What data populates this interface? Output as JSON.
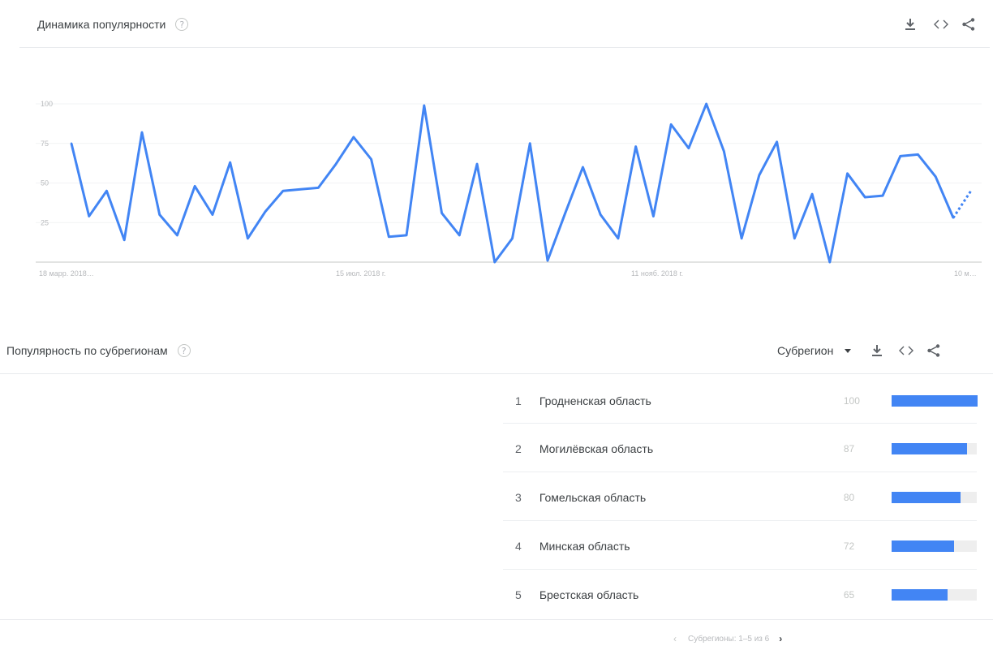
{
  "interest_over_time": {
    "title": "Динамика популярности",
    "help_glyph": "?",
    "chart_data": {
      "type": "line",
      "title": "Динамика популярности",
      "x_tick_labels": [
        "18 марр. 2018…",
        "15 июл. 2018 г.",
        "11 нояб. 2018 г.",
        "10 м…"
      ],
      "y_tick_labels": [
        "100",
        "75",
        "50",
        "25"
      ],
      "ylim": [
        0,
        100
      ],
      "grid": true,
      "series": [
        {
          "values": [
            75,
            29,
            45,
            14,
            82,
            30,
            17,
            48,
            30,
            63,
            15,
            32,
            45,
            46,
            47,
            62,
            79,
            65,
            16,
            17,
            99,
            31,
            17,
            62,
            0,
            15,
            75,
            1,
            31,
            60,
            30,
            15,
            73,
            29,
            87,
            72,
            100,
            70,
            15,
            55,
            76,
            15,
            43,
            0,
            56,
            41,
            42,
            67,
            68,
            54,
            28
          ],
          "projected": [
            28,
            45
          ],
          "color": "#4285f4"
        }
      ]
    }
  },
  "subregion": {
    "title": "Популярность по субрегионам",
    "help_glyph": "?",
    "dropdown_label": "Субрегион",
    "rows": [
      {
        "rank": "1",
        "name": "Гродненская область",
        "value": "100",
        "fraction": 1.0
      },
      {
        "rank": "2",
        "name": "Могилёвская область",
        "value": "87",
        "fraction": 0.87
      },
      {
        "rank": "3",
        "name": "Гомельская область",
        "value": "80",
        "fraction": 0.8
      },
      {
        "rank": "4",
        "name": "Минская область",
        "value": "72",
        "fraction": 0.72
      },
      {
        "rank": "5",
        "name": "Брестская область",
        "value": "65",
        "fraction": 0.65
      }
    ],
    "pagination": {
      "text": "Субрегионы: 1–5 из 6",
      "prev_glyph": "‹",
      "next_glyph": "›"
    }
  },
  "icons": {
    "download": "download-icon",
    "embed": "embed-icon",
    "share": "share-icon"
  },
  "colors": {
    "accent": "#4285f4"
  }
}
